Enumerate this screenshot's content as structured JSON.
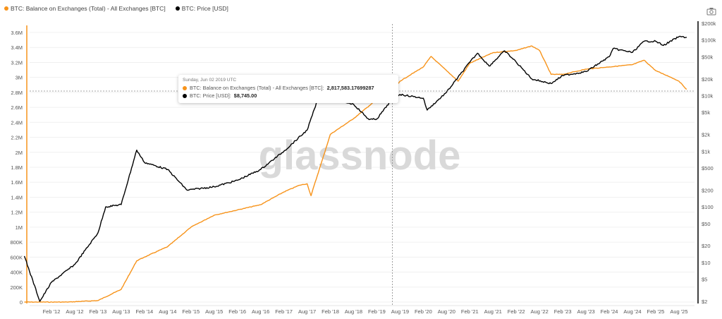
{
  "legend": [
    {
      "label": "BTC: Balance on Exchanges (Total) - All Exchanges [BTC]",
      "color": "#f7931a"
    },
    {
      "label": "BTC: Price [USD]",
      "color": "#000000"
    }
  ],
  "toolbar": {
    "screenshot_icon": "camera-icon"
  },
  "watermark": "glassnode",
  "tooltip": {
    "date": "Sunday, Jun 02 2019 UTC",
    "rows": [
      {
        "label": "BTC: Balance on Exchanges (Total) - All Exchanges [BTC]:",
        "value": "2,817,583.17699287",
        "color": "#f7931a"
      },
      {
        "label": "BTC: Price [USD]:",
        "value": "$8,745.00",
        "color": "#000000"
      }
    ]
  },
  "chart_data": {
    "type": "line",
    "x_ticks": [
      "Feb '12",
      "Aug '12",
      "Feb '13",
      "Aug '13",
      "Feb '14",
      "Aug '14",
      "Feb '15",
      "Aug '15",
      "Feb '16",
      "Aug '16",
      "Feb '17",
      "Aug '17",
      "Feb '18",
      "Aug '18",
      "Feb '19",
      "Aug '19",
      "Feb '20",
      "Aug '20",
      "Feb '21",
      "Aug '21",
      "Feb '22",
      "Aug '22",
      "Feb '23",
      "Aug '23",
      "Feb '24",
      "Aug '24",
      "Feb '25",
      "Aug '25"
    ],
    "y_left": {
      "ticks": [
        "0",
        "200K",
        "400K",
        "600K",
        "800K",
        "1M",
        "1.2M",
        "1.4M",
        "1.6M",
        "1.8M",
        "2M",
        "2.2M",
        "2.4M",
        "2.6M",
        "2.8M",
        "3M",
        "3.2M",
        "3.4M",
        "3.6M"
      ],
      "range": [
        0,
        3600000
      ],
      "scale": "linear"
    },
    "y_right": {
      "ticks": [
        "$2",
        "$5",
        "$10",
        "$20",
        "$50",
        "$100",
        "$200",
        "$500",
        "$1k",
        "$2k",
        "$5k",
        "$10k",
        "$20k",
        "$50k",
        "$100k",
        "$200k"
      ],
      "range": [
        2,
        200000
      ],
      "scale": "log"
    },
    "grid": true,
    "legend_position": "top-left",
    "crosshair": {
      "date": "2019-06-02",
      "balance": 2817583.18,
      "price": 8745
    },
    "series": [
      {
        "name": "BTC: Balance on Exchanges (Total) - All Exchanges [BTC]",
        "color": "#f7931a",
        "axis": "left",
        "points": [
          [
            "2011-07",
            0
          ],
          [
            "2012-06",
            0
          ],
          [
            "2013-02",
            20000
          ],
          [
            "2013-08",
            170000
          ],
          [
            "2013-12",
            550000
          ],
          [
            "2014-02",
            600000
          ],
          [
            "2014-08",
            740000
          ],
          [
            "2015-02",
            1000000
          ],
          [
            "2015-08",
            1160000
          ],
          [
            "2016-02",
            1230000
          ],
          [
            "2016-08",
            1300000
          ],
          [
            "2017-02",
            1470000
          ],
          [
            "2017-06",
            1560000
          ],
          [
            "2017-08",
            1580000
          ],
          [
            "2017-09",
            1420000
          ],
          [
            "2017-12",
            1910000
          ],
          [
            "2018-02",
            2240000
          ],
          [
            "2018-08",
            2450000
          ],
          [
            "2018-12",
            2620000
          ],
          [
            "2019-02",
            2710000
          ],
          [
            "2019-06",
            2817583
          ],
          [
            "2019-08",
            2950000
          ],
          [
            "2020-02",
            3140000
          ],
          [
            "2020-04",
            3280000
          ],
          [
            "2020-08",
            3090000
          ],
          [
            "2020-11",
            2950000
          ],
          [
            "2021-02",
            3190000
          ],
          [
            "2021-08",
            3330000
          ],
          [
            "2022-02",
            3360000
          ],
          [
            "2022-06",
            3420000
          ],
          [
            "2022-08",
            3360000
          ],
          [
            "2022-11",
            3040000
          ],
          [
            "2023-02",
            3040000
          ],
          [
            "2023-08",
            3110000
          ],
          [
            "2024-02",
            3140000
          ],
          [
            "2024-08",
            3170000
          ],
          [
            "2024-11",
            3230000
          ],
          [
            "2025-02",
            3090000
          ],
          [
            "2025-06",
            3000000
          ],
          [
            "2025-08",
            2950000
          ],
          [
            "2025-10",
            2840000
          ]
        ]
      },
      {
        "name": "BTC: Price [USD]",
        "color": "#000000",
        "axis": "right",
        "points": [
          [
            "2011-07",
            13
          ],
          [
            "2011-11",
            2
          ],
          [
            "2012-02",
            4.4
          ],
          [
            "2012-08",
            9.2
          ],
          [
            "2013-02",
            34
          ],
          [
            "2013-04",
            100
          ],
          [
            "2013-08",
            110
          ],
          [
            "2013-12",
            1050
          ],
          [
            "2014-02",
            630
          ],
          [
            "2014-08",
            470
          ],
          [
            "2015-01",
            200
          ],
          [
            "2015-08",
            230
          ],
          [
            "2016-02",
            300
          ],
          [
            "2016-08",
            470
          ],
          [
            "2017-02",
            1000
          ],
          [
            "2017-08",
            2400
          ],
          [
            "2017-12",
            15000
          ],
          [
            "2018-02",
            9000
          ],
          [
            "2018-08",
            7000
          ],
          [
            "2018-12",
            3700
          ],
          [
            "2019-02",
            3800
          ],
          [
            "2019-06",
            8745
          ],
          [
            "2019-08",
            10500
          ],
          [
            "2020-02",
            9000
          ],
          [
            "2020-03",
            5500
          ],
          [
            "2020-08",
            11500
          ],
          [
            "2021-02",
            40000
          ],
          [
            "2021-04",
            58000
          ],
          [
            "2021-07",
            34000
          ],
          [
            "2021-11",
            64000
          ],
          [
            "2022-02",
            40000
          ],
          [
            "2022-06",
            20000
          ],
          [
            "2022-11",
            16500
          ],
          [
            "2023-02",
            23000
          ],
          [
            "2023-08",
            27000
          ],
          [
            "2024-02",
            50000
          ],
          [
            "2024-03",
            70000
          ],
          [
            "2024-08",
            60000
          ],
          [
            "2024-11",
            95000
          ],
          [
            "2025-02",
            95000
          ],
          [
            "2025-04",
            80000
          ],
          [
            "2025-08",
            115000
          ],
          [
            "2025-10",
            112000
          ]
        ]
      }
    ]
  }
}
